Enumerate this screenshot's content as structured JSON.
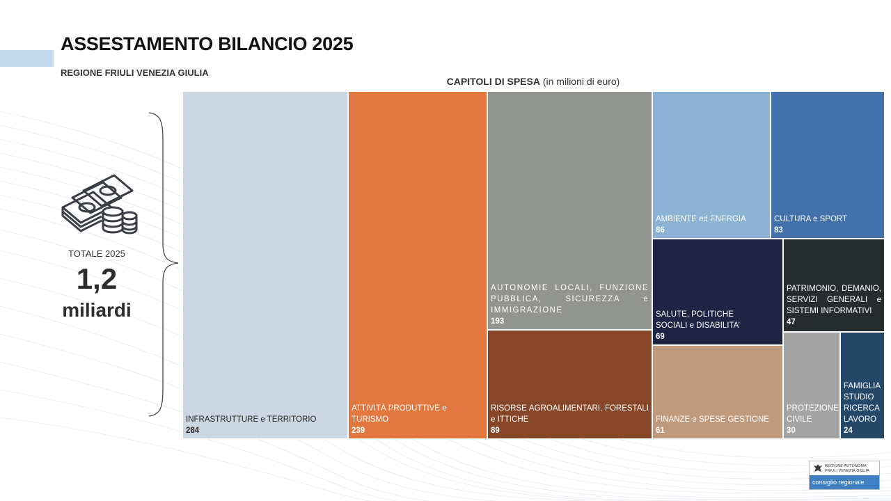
{
  "header": {
    "title": "ASSESTAMENTO BILANCIO 2025",
    "subtitle": "REGIONE FRIULI VENEZIA GIULIA"
  },
  "summary": {
    "label": "TOTALE 2025",
    "value": "1,2",
    "unit": "miliardi",
    "icon": "money-stack-icon"
  },
  "chart_data": {
    "type": "treemap",
    "title": "CAPITOLI DI SPESA",
    "title_note": "(in milioni di euro)",
    "items": [
      {
        "label": "INFRASTRUTTURE e TERRITORIO",
        "value": 284,
        "color": "#cbd7e3",
        "text_color": "#222222"
      },
      {
        "label": "ATTIVITÀ PRODUTTIVE e TURISMO",
        "value": 239,
        "color": "#e2783f",
        "text_color": "#ffffff"
      },
      {
        "label": "AUTONOMIE LOCALI, FUNZIONE PUBBLICA, SICUREZZA e IMMIGRAZIONE",
        "value": 193,
        "color": "#929490",
        "text_color": "#ffffff"
      },
      {
        "label": "RISORSE AGROALIMENTARI, FORESTALI e ITTICHE",
        "value": 89,
        "color": "#884628",
        "text_color": "#ffffff"
      },
      {
        "label": "AMBIENTE ed ENERGIA",
        "value": 86,
        "color": "#8cb2d4",
        "text_color": "#ffffff"
      },
      {
        "label": "CULTURA e SPORT",
        "value": 83,
        "color": "#4170ab",
        "text_color": "#ffffff"
      },
      {
        "label": "SALUTE, POLITICHE SOCIALI e DISABILITA’",
        "value": 69,
        "color": "#1d2444",
        "text_color": "#ffffff"
      },
      {
        "label": "PATRIMONIO, DEMANIO, SERVIZI GENERALI e SISTEMI INFORMATIVI",
        "value": 47,
        "color": "#262b2e",
        "text_color": "#ffffff"
      },
      {
        "label": "FINANZE e SPESE GESTIONE",
        "value": 61,
        "color": "#c09a7c",
        "text_color": "#ffffff"
      },
      {
        "label": "PROTEZIONE CIVILE",
        "value": 30,
        "color": "#a4a4a4",
        "text_color": "#ffffff"
      },
      {
        "label": "FAMIGLIA STUDIO RICERCA LAVORO",
        "value": 24,
        "color": "#254869",
        "text_color": "#ffffff"
      }
    ]
  },
  "footer": {
    "logo_line1": "REGIONE AUTONOMA",
    "logo_line2": "FRIULI VENEZIA GIULIA",
    "logo_bar": "consiglio regionale"
  }
}
